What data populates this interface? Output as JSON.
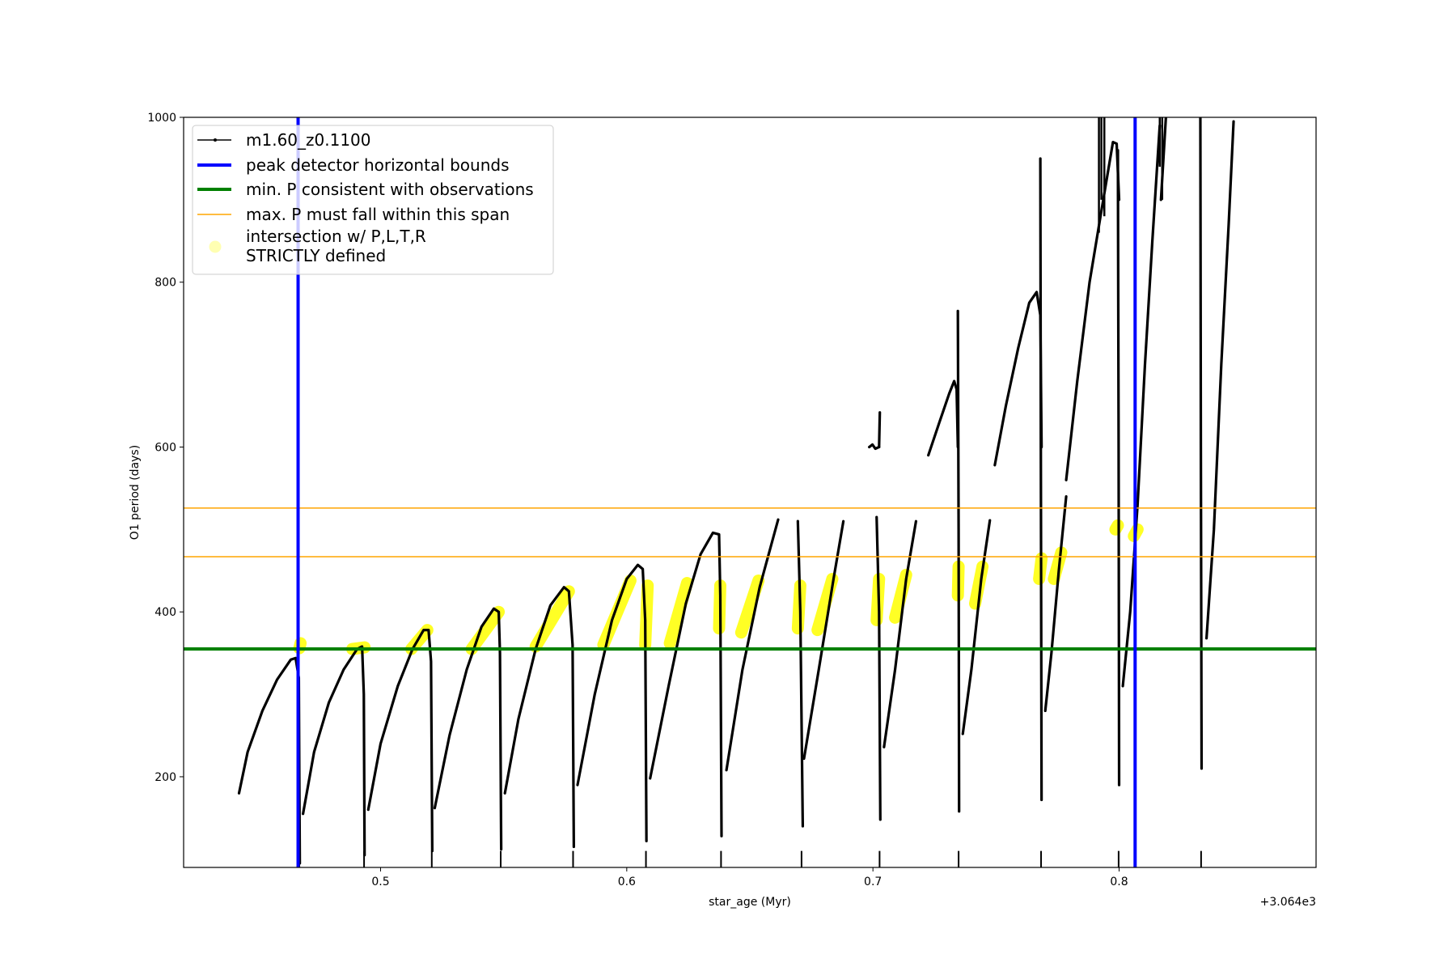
{
  "chart_data": {
    "type": "line",
    "title": "",
    "xlabel": "star_age (Myr)",
    "ylabel": "O1 period (days)",
    "x_offset_label": "+3.064e3",
    "xlim": [
      0.42,
      0.88
    ],
    "ylim": [
      90,
      1000
    ],
    "x_ticks": [
      0.5,
      0.6,
      0.7,
      0.8
    ],
    "x_tick_labels": [
      "0.5",
      "0.6",
      "0.7",
      "0.8"
    ],
    "y_ticks": [
      200,
      400,
      600,
      800,
      1000
    ],
    "y_tick_labels": [
      "200",
      "400",
      "600",
      "800",
      "1000"
    ],
    "grid": false,
    "legend_position": "top-left",
    "colors": {
      "track": "#000000",
      "bounds": "#0000ff",
      "min_p": "#008000",
      "max_p": "#ffa500",
      "intersection": "#ffff00"
    },
    "legend": [
      {
        "label": "m1.60_z0.1100",
        "style": "black-line-marker"
      },
      {
        "label": "peak detector horizontal bounds",
        "style": "blue-line"
      },
      {
        "label": "min. P consistent with observations",
        "style": "green-line"
      },
      {
        "label": "max. P must fall within this span",
        "style": "orange-line"
      },
      {
        "label": "intersection w/ P,L,T,R",
        "label2": "STRICTLY defined",
        "style": "yellow-circle"
      }
    ],
    "vertical_bounds_x": [
      0.4665,
      0.8065
    ],
    "min_p": 355,
    "max_p_span": [
      467,
      526
    ],
    "series": [
      {
        "segments": [
          [
            [
              0.4425,
              180
            ],
            [
              0.446,
              230
            ],
            [
              0.452,
              280
            ],
            [
              0.458,
              318
            ],
            [
              0.4635,
              342
            ],
            [
              0.4655,
              344
            ],
            [
              0.4668,
              320
            ],
            [
              0.467,
              200
            ],
            [
              0.4672,
              95
            ]
          ],
          [
            [
              0.4685,
              155
            ],
            [
              0.473,
              230
            ],
            [
              0.479,
              290
            ],
            [
              0.485,
              330
            ],
            [
              0.4905,
              355
            ],
            [
              0.4925,
              358
            ],
            [
              0.4932,
              300
            ],
            [
              0.4935,
              105
            ]
          ],
          [
            [
              0.495,
              160
            ],
            [
              0.5,
              240
            ],
            [
              0.507,
              310
            ],
            [
              0.513,
              355
            ],
            [
              0.5175,
              378
            ],
            [
              0.5195,
              378
            ],
            [
              0.5205,
              340
            ],
            [
              0.521,
              110
            ]
          ],
          [
            [
              0.522,
              162
            ],
            [
              0.528,
              250
            ],
            [
              0.535,
              330
            ],
            [
              0.541,
              382
            ],
            [
              0.546,
              404
            ],
            [
              0.548,
              400
            ],
            [
              0.5485,
              350
            ],
            [
              0.549,
              112
            ]
          ],
          [
            [
              0.5505,
              180
            ],
            [
              0.556,
              270
            ],
            [
              0.563,
              355
            ],
            [
              0.569,
              408
            ],
            [
              0.5745,
              430
            ],
            [
              0.5765,
              425
            ],
            [
              0.578,
              360
            ],
            [
              0.5785,
              115
            ]
          ],
          [
            [
              0.58,
              190
            ],
            [
              0.587,
              300
            ],
            [
              0.594,
              390
            ],
            [
              0.6,
              440
            ],
            [
              0.6045,
              457
            ],
            [
              0.6065,
              452
            ],
            [
              0.6075,
              390
            ],
            [
              0.608,
              122
            ]
          ],
          [
            [
              0.6095,
              198
            ],
            [
              0.617,
              310
            ],
            [
              0.624,
              410
            ],
            [
              0.63,
              470
            ],
            [
              0.635,
              496
            ],
            [
              0.6375,
              494
            ],
            [
              0.638,
              420
            ],
            [
              0.6385,
              128
            ]
          ],
          [
            [
              0.6405,
              208
            ],
            [
              0.647,
              330
            ],
            [
              0.654,
              430
            ],
            [
              0.6615,
              512
            ]
          ],
          [
            [
              0.6695,
              510
            ],
            [
              0.6705,
              400
            ],
            [
              0.6715,
              140
            ]
          ],
          [
            [
              0.672,
              222
            ],
            [
              0.678,
              330
            ],
            [
              0.684,
              440
            ],
            [
              0.688,
              510
            ]
          ],
          [
            [
              0.7015,
              515
            ],
            [
              0.7025,
              400
            ],
            [
              0.703,
              148
            ]
          ],
          [
            [
              0.7045,
              236
            ],
            [
              0.709,
              330
            ],
            [
              0.7135,
              440
            ],
            [
              0.7175,
              510
            ]
          ],
          [
            [
              0.6985,
              600
            ],
            [
              0.6998,
              603
            ],
            [
              0.701,
              598
            ],
            [
              0.7025,
              600
            ]
          ],
          [
            [
              0.7025,
              600
            ],
            [
              0.7028,
              642
            ]
          ],
          [
            [
              0.7225,
              590
            ],
            [
              0.727,
              630
            ],
            [
              0.731,
              665
            ],
            [
              0.733,
              680
            ],
            [
              0.734,
              670
            ],
            [
              0.7345,
              600
            ]
          ],
          [
            [
              0.7345,
              765
            ],
            [
              0.7348,
              500
            ],
            [
              0.735,
              158
            ]
          ],
          [
            [
              0.7365,
              252
            ],
            [
              0.74,
              330
            ],
            [
              0.744,
              440
            ],
            [
              0.7475,
              511
            ]
          ],
          [
            [
              0.7495,
              578
            ],
            [
              0.754,
              650
            ],
            [
              0.759,
              720
            ],
            [
              0.7635,
              775
            ],
            [
              0.7665,
              788
            ],
            [
              0.768,
              760
            ],
            [
              0.7685,
              600
            ]
          ],
          [
            [
              0.768,
              950
            ],
            [
              0.7682,
              600
            ],
            [
              0.7685,
              172
            ]
          ],
          [
            [
              0.77,
              280
            ],
            [
              0.7725,
              350
            ],
            [
              0.7755,
              450
            ],
            [
              0.7785,
              540
            ]
          ],
          [
            [
              0.7785,
              560
            ],
            [
              0.783,
              680
            ],
            [
              0.788,
              800
            ],
            [
              0.793,
              890
            ],
            [
              0.7975,
              970
            ],
            [
              0.799,
              968
            ],
            [
              0.8,
              900
            ]
          ],
          [
            [
              0.7995,
              960
            ],
            [
              0.7998,
              600
            ],
            [
              0.8,
              190
            ]
          ],
          [
            [
              0.8015,
              310
            ],
            [
              0.8045,
              400
            ],
            [
              0.8075,
              530
            ],
            [
              0.8105,
              700
            ],
            [
              0.8135,
              850
            ],
            [
              0.8165,
              990
            ]
          ],
          [
            [
              0.817,
              900
            ],
            [
              0.819,
              1000
            ]
          ],
          [
            [
              0.833,
              1000
            ],
            [
              0.8332,
              600
            ],
            [
              0.8335,
              210
            ]
          ],
          [
            [
              0.8355,
              368
            ],
            [
              0.8385,
              500
            ],
            [
              0.8415,
              700
            ],
            [
              0.8445,
              870
            ],
            [
              0.8465,
              995
            ]
          ]
        ]
      },
      {
        "spikes": [
          0.467,
          0.4933,
          0.5208,
          0.5488,
          0.5782,
          0.6078,
          0.6383,
          0.671,
          0.7027,
          0.7348,
          0.7683,
          0.7998,
          0.8333
        ]
      },
      {
        "intersection_segments": [
          [
            0.467,
            356,
            0.4675,
            362
          ],
          [
            0.4885,
            355,
            0.4935,
            357
          ],
          [
            0.5125,
            355,
            0.519,
            378
          ],
          [
            0.537,
            355,
            0.548,
            400
          ],
          [
            0.563,
            358,
            0.5765,
            425
          ],
          [
            0.5905,
            360,
            0.6015,
            438
          ],
          [
            0.6075,
            360,
            0.6085,
            432
          ],
          [
            0.6175,
            362,
            0.6245,
            435
          ],
          [
            0.6375,
            380,
            0.638,
            432
          ],
          [
            0.6465,
            375,
            0.6535,
            438
          ],
          [
            0.6695,
            380,
            0.6705,
            432
          ],
          [
            0.6775,
            378,
            0.6835,
            440
          ],
          [
            0.7015,
            390,
            0.7025,
            440
          ],
          [
            0.709,
            393,
            0.7135,
            445
          ],
          [
            0.7345,
            420,
            0.7348,
            455
          ],
          [
            0.7415,
            410,
            0.7445,
            455
          ],
          [
            0.7675,
            440,
            0.7685,
            465
          ],
          [
            0.7735,
            440,
            0.7765,
            472
          ],
          [
            0.7985,
            500,
            0.7995,
            505
          ],
          [
            0.806,
            492,
            0.8075,
            500
          ]
        ]
      }
    ]
  }
}
